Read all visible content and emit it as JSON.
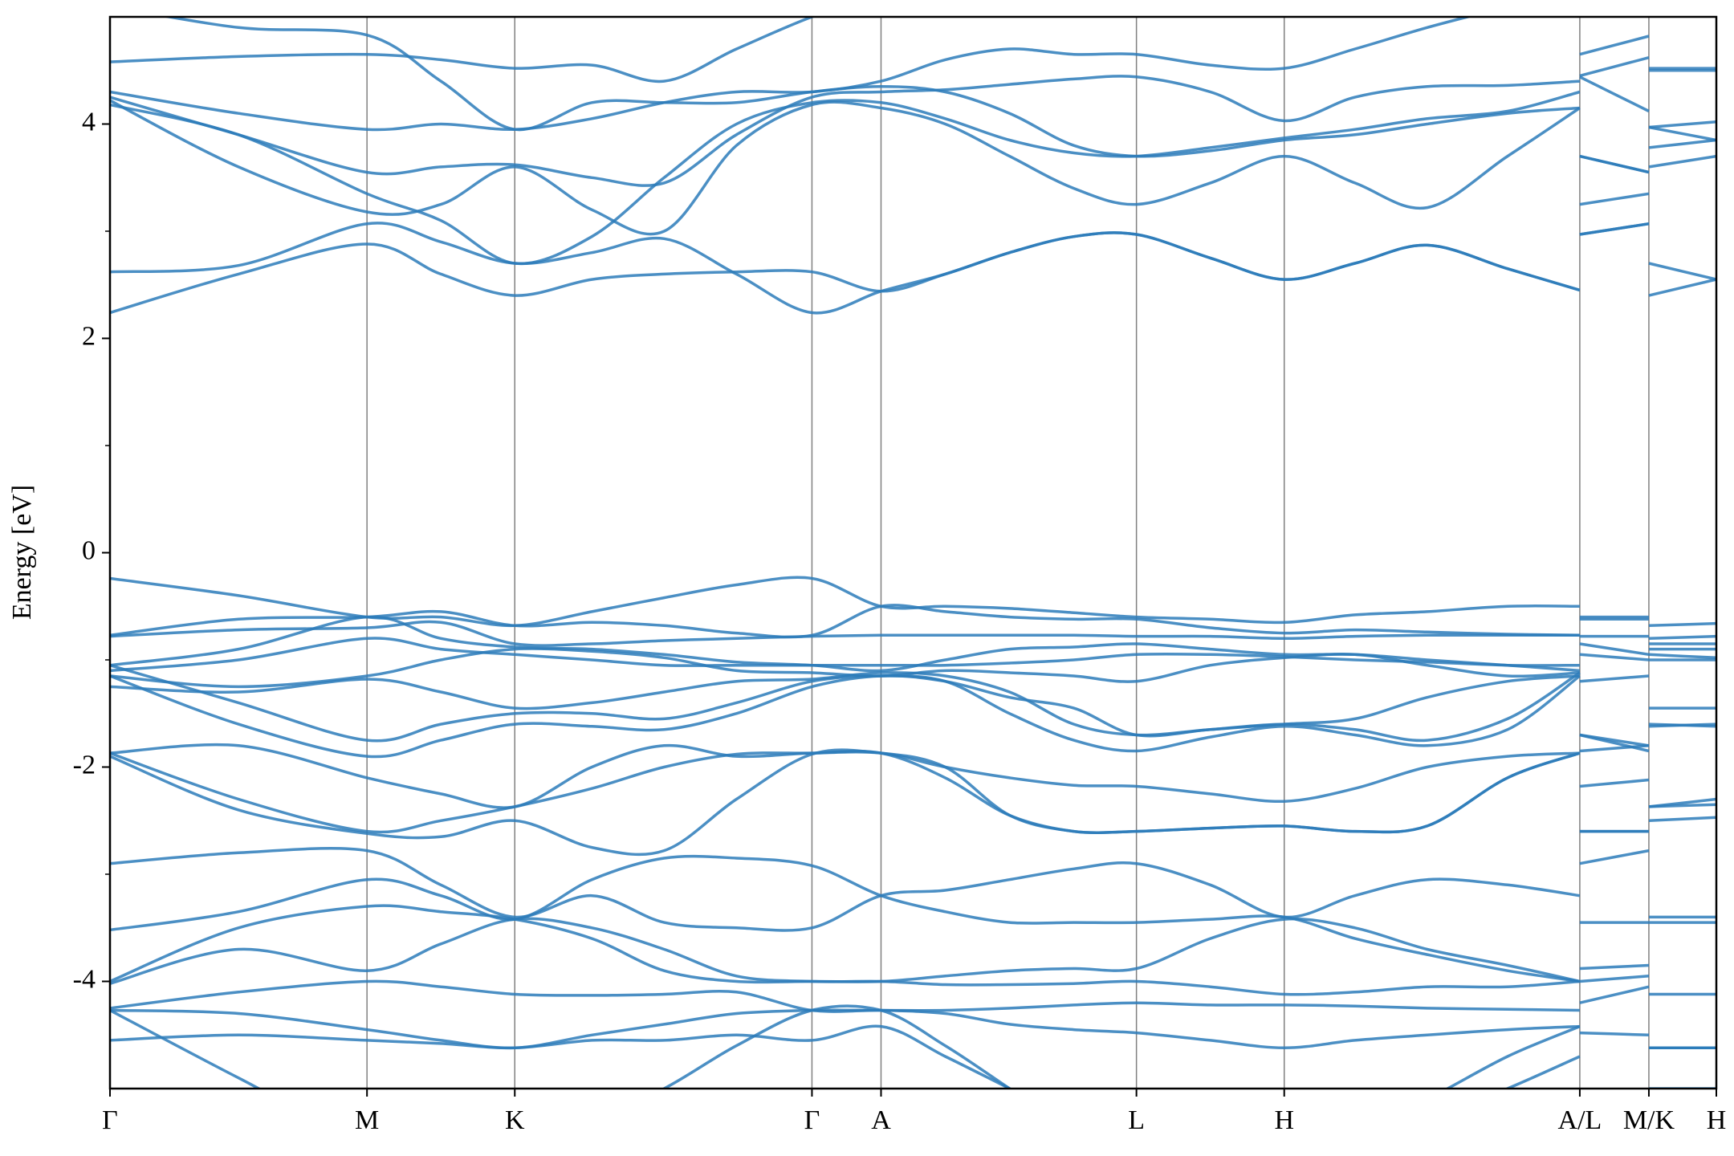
{
  "chart_data": {
    "type": "line",
    "ylabel": "Energy [eV]",
    "color": "#2b7bba",
    "xlim": [
      0,
      1
    ],
    "ylim": [
      -5,
      5
    ],
    "yticks": [
      -4,
      -2,
      0,
      2,
      4
    ],
    "yminorticks": [
      -3,
      -1,
      1,
      3
    ],
    "xgrid": true,
    "xticks": [
      {
        "value": 0,
        "label": "Γ"
      },
      {
        "value": 0.16,
        "label": "M"
      },
      {
        "value": 0.252,
        "label": "K"
      },
      {
        "value": 0.437,
        "label": "Γ"
      },
      {
        "value": 0.48,
        "label": "A"
      },
      {
        "value": 0.639,
        "label": "L"
      },
      {
        "value": 0.731,
        "label": "H"
      },
      {
        "value": 0.915,
        "label": "A/L"
      },
      {
        "value": 0.958,
        "label": "M/K"
      },
      {
        "value": 1,
        "label": "H"
      }
    ],
    "x": [
      0,
      0.08,
      0.16,
      0.206,
      0.252,
      0.3,
      0.345,
      0.39,
      0.437,
      0.48,
      0.52,
      0.56,
      0.6,
      0.639,
      0.685,
      0.731,
      0.775,
      0.82,
      0.87,
      0.915,
      0.915,
      0.915,
      0.958,
      0.958,
      0.958,
      1
    ],
    "series": [
      {
        "values": [
          2.24,
          2.6,
          2.88,
          2.6,
          2.4,
          2.55,
          2.6,
          2.62,
          2.62,
          2.44,
          2.6,
          2.8,
          2.95,
          2.97,
          2.75,
          2.55,
          2.7,
          2.87,
          2.65,
          2.45,
          null,
          2.97,
          3.07,
          null,
          2.4,
          2.55
        ]
      },
      {
        "values": [
          2.62,
          2.68,
          3.07,
          2.9,
          2.7,
          2.8,
          2.93,
          2.6,
          2.24,
          2.44,
          2.6,
          2.8,
          2.95,
          2.97,
          2.75,
          2.55,
          2.7,
          2.87,
          2.65,
          2.45,
          null,
          2.97,
          3.07,
          null,
          2.7,
          2.55
        ]
      },
      {
        "values": [
          4.22,
          3.6,
          3.18,
          3.25,
          3.6,
          3.2,
          3.0,
          3.8,
          4.18,
          4.15,
          4.0,
          3.7,
          3.4,
          3.25,
          3.45,
          3.7,
          3.45,
          3.22,
          3.7,
          4.15,
          null,
          3.25,
          3.35,
          null,
          3.6,
          3.7
        ]
      },
      {
        "values": [
          4.18,
          3.9,
          3.35,
          3.1,
          2.7,
          2.95,
          3.5,
          4.0,
          4.2,
          4.2,
          4.05,
          3.85,
          3.73,
          3.7,
          3.78,
          3.87,
          3.95,
          4.05,
          4.12,
          4.3,
          null,
          3.7,
          3.55,
          null,
          3.78,
          3.85
        ]
      },
      {
        "values": [
          4.25,
          3.9,
          3.55,
          3.6,
          3.62,
          3.5,
          3.45,
          3.9,
          4.25,
          4.3,
          4.32,
          4.37,
          4.42,
          4.44,
          4.3,
          4.03,
          4.25,
          4.35,
          4.36,
          4.4,
          null,
          4.44,
          4.12,
          null,
          3.97,
          4.02
        ]
      },
      {
        "values": [
          4.3,
          4.1,
          3.95,
          4.0,
          3.95,
          4.05,
          4.2,
          4.3,
          4.3,
          4.4,
          4.6,
          4.7,
          4.65,
          4.65,
          4.55,
          4.52,
          4.7,
          4.9,
          5.1,
          5.3,
          null,
          4.65,
          4.82,
          null,
          4.5,
          4.5
        ]
      },
      {
        "values": [
          4.58,
          4.63,
          4.65,
          4.6,
          4.52,
          4.55,
          4.4,
          4.7,
          5.0,
          5.2,
          5.4,
          5.5,
          5.5,
          5.5,
          5.5,
          5.5,
          5.5,
          5.5,
          5.5,
          5.5,
          null,
          4.45,
          4.62,
          null,
          4.52,
          4.52
        ]
      },
      {
        "values": [
          5.1,
          4.9,
          4.83,
          4.4,
          3.95,
          4.2,
          4.2,
          4.2,
          4.3,
          4.35,
          4.3,
          4.1,
          3.8,
          3.7,
          3.75,
          3.85,
          3.9,
          4.0,
          4.1,
          4.15,
          null,
          3.7,
          3.55,
          null,
          3.97,
          3.85
        ]
      },
      {
        "values": [
          -0.24,
          -0.4,
          -0.6,
          -0.6,
          -0.68,
          -0.55,
          -0.42,
          -0.3,
          -0.24,
          -0.5,
          -0.5,
          -0.52,
          -0.56,
          -0.6,
          -0.62,
          -0.65,
          -0.58,
          -0.55,
          -0.5,
          -0.5,
          null,
          -0.6,
          -0.6,
          null,
          -0.68,
          -0.66
        ]
      },
      {
        "values": [
          -0.77,
          -0.62,
          -0.6,
          -0.55,
          -0.68,
          -0.65,
          -0.68,
          -0.75,
          -0.77,
          -0.5,
          -0.55,
          -0.6,
          -0.62,
          -0.62,
          -0.7,
          -0.75,
          -0.72,
          -0.74,
          -0.76,
          -0.77,
          null,
          -0.62,
          -0.62,
          null,
          -0.8,
          -0.78
        ]
      },
      {
        "values": [
          -0.78,
          -0.72,
          -0.7,
          -0.65,
          -0.85,
          -0.85,
          -0.82,
          -0.8,
          -0.78,
          -0.77,
          -0.77,
          -0.77,
          -0.77,
          -0.78,
          -0.78,
          -0.8,
          -0.78,
          -0.77,
          -0.77,
          -0.77,
          null,
          -0.78,
          -0.78,
          null,
          -0.85,
          -0.85
        ]
      },
      {
        "values": [
          -1.05,
          -0.9,
          -0.6,
          -0.8,
          -0.88,
          -0.9,
          -0.95,
          -1.02,
          -1.05,
          -1.1,
          -1.0,
          -0.9,
          -0.88,
          -0.85,
          -0.9,
          -0.95,
          -0.95,
          -1.0,
          -1.05,
          -1.1,
          null,
          -0.85,
          -0.95,
          null,
          -0.9,
          -0.9
        ]
      },
      {
        "values": [
          -1.1,
          -1.0,
          -0.8,
          -0.9,
          -0.95,
          -1.0,
          -1.05,
          -1.05,
          -1.05,
          -1.05,
          -1.05,
          -1.03,
          -1.0,
          -0.95,
          -0.95,
          -0.97,
          -1.0,
          -1.02,
          -1.05,
          -1.05,
          null,
          -0.95,
          -1.0,
          null,
          -0.95,
          -0.98
        ]
      },
      {
        "values": [
          -1.15,
          -1.25,
          -1.15,
          -1.0,
          -0.9,
          -0.92,
          -0.98,
          -1.1,
          -1.12,
          -1.15,
          -1.1,
          -1.12,
          -1.15,
          -1.2,
          -1.05,
          -0.98,
          -0.95,
          -1.05,
          -1.15,
          -1.12,
          null,
          -1.2,
          -1.15,
          null,
          -1.0,
          -1.0
        ]
      },
      {
        "values": [
          -1.25,
          -1.3,
          -1.18,
          -1.3,
          -1.45,
          -1.4,
          -1.3,
          -1.2,
          -1.18,
          -1.12,
          -1.15,
          -1.3,
          -1.6,
          -1.7,
          -1.65,
          -1.6,
          -1.55,
          -1.35,
          -1.2,
          -1.15,
          null,
          -1.7,
          -1.85,
          null,
          -1.45,
          -1.45
        ]
      },
      {
        "values": [
          -1.05,
          -1.4,
          -1.75,
          -1.6,
          -1.5,
          -1.5,
          -1.55,
          -1.4,
          -1.2,
          -1.15,
          -1.2,
          -1.5,
          -1.75,
          -1.85,
          -1.72,
          -1.62,
          -1.7,
          -1.8,
          -1.65,
          -1.15,
          null,
          -1.85,
          -1.8,
          null,
          -1.6,
          -1.62
        ]
      },
      {
        "values": [
          -1.15,
          -1.6,
          -1.9,
          -1.75,
          -1.6,
          -1.62,
          -1.65,
          -1.5,
          -1.25,
          -1.15,
          -1.2,
          -1.35,
          -1.45,
          -1.7,
          -1.65,
          -1.6,
          -1.65,
          -1.75,
          -1.55,
          -1.12,
          null,
          -1.7,
          -1.8,
          null,
          -1.62,
          -1.6
        ]
      },
      {
        "values": [
          -1.87,
          -1.8,
          -2.1,
          -2.25,
          -2.37,
          -2.0,
          -1.8,
          -1.9,
          -1.87,
          -1.87,
          -2.0,
          -2.1,
          -2.17,
          -2.18,
          -2.25,
          -2.32,
          -2.2,
          -2.0,
          -1.9,
          -1.87,
          null,
          -2.18,
          -2.12,
          null,
          -2.37,
          -2.3
        ]
      },
      {
        "values": [
          -1.87,
          -2.3,
          -2.6,
          -2.5,
          -2.37,
          -2.2,
          -2.0,
          -1.88,
          -1.87,
          -1.87,
          -2.1,
          -2.45,
          -2.6,
          -2.6,
          -2.57,
          -2.55,
          -2.6,
          -2.55,
          -2.1,
          -1.87,
          null,
          -2.6,
          -2.6,
          null,
          -2.37,
          -2.35
        ]
      },
      {
        "values": [
          -1.9,
          -2.4,
          -2.62,
          -2.65,
          -2.5,
          -2.75,
          -2.78,
          -2.3,
          -1.88,
          -1.87,
          -2.0,
          -2.45,
          -2.6,
          -2.6,
          -2.57,
          -2.55,
          -2.6,
          -2.55,
          -2.1,
          -1.87,
          null,
          -2.6,
          -2.6,
          null,
          -2.5,
          -2.47
        ]
      },
      {
        "values": [
          -2.9,
          -2.8,
          -2.78,
          -3.1,
          -3.4,
          -3.2,
          -3.45,
          -3.5,
          -3.5,
          -3.2,
          -3.15,
          -3.05,
          -2.95,
          -2.9,
          -3.1,
          -3.4,
          -3.2,
          -3.05,
          -3.1,
          -3.2,
          null,
          -2.9,
          -2.78,
          null,
          -3.4,
          -3.4
        ]
      },
      {
        "values": [
          -3.52,
          -3.35,
          -3.05,
          -3.2,
          -3.42,
          -3.05,
          -2.85,
          -2.85,
          -2.92,
          -3.2,
          -3.35,
          -3.45,
          -3.45,
          -3.45,
          -3.42,
          -3.4,
          -3.6,
          -3.75,
          -3.9,
          -4.0,
          null,
          -3.45,
          -3.45,
          null,
          -3.45,
          -3.45
        ]
      },
      {
        "values": [
          -4.0,
          -3.5,
          -3.3,
          -3.35,
          -3.42,
          -3.6,
          -3.9,
          -4.0,
          -4.0,
          -4.0,
          -3.95,
          -3.9,
          -3.88,
          -3.88,
          -3.6,
          -3.42,
          -3.5,
          -3.7,
          -3.85,
          -4.0,
          null,
          -3.88,
          -3.85,
          null,
          -4.12,
          -4.12
        ]
      },
      {
        "values": [
          -4.02,
          -3.7,
          -3.9,
          -3.65,
          -3.42,
          -3.5,
          -3.7,
          -3.95,
          -4.0,
          -4.0,
          -4.03,
          -4.03,
          -4.02,
          -4.0,
          -4.05,
          -4.12,
          -4.1,
          -4.05,
          -4.05,
          -4.0,
          null,
          -4.0,
          -3.95,
          null,
          -4.62,
          -4.62
        ]
      },
      {
        "values": [
          -4.25,
          -4.1,
          -4.0,
          -4.05,
          -4.12,
          -4.13,
          -4.12,
          -4.1,
          -4.27,
          -4.27,
          -4.3,
          -4.4,
          -4.45,
          -4.48,
          -4.55,
          -4.62,
          -4.55,
          -4.5,
          -4.45,
          -4.42,
          null,
          -4.48,
          -4.5,
          null,
          -4.62,
          -4.62
        ]
      },
      {
        "values": [
          -4.27,
          -4.3,
          -4.45,
          -4.55,
          -4.62,
          -4.5,
          -4.4,
          -4.3,
          -4.27,
          -4.27,
          -4.27,
          -4.25,
          -4.22,
          -4.2,
          -4.22,
          -4.22,
          -4.23,
          -4.25,
          -4.26,
          -4.27,
          null,
          -4.2,
          -4.05,
          null,
          -4.62,
          -4.62
        ]
      },
      {
        "values": [
          -4.55,
          -4.5,
          -4.55,
          -4.58,
          -4.62,
          -4.55,
          -4.55,
          -4.5,
          -4.55,
          -4.42,
          -4.7,
          -5.0,
          -5.3,
          -5.5,
          -5.5,
          -5.5,
          -5.4,
          -5.1,
          -4.7,
          -4.42,
          null,
          -5.5,
          -5.5,
          null,
          -5.0,
          -5.0
        ]
      },
      {
        "values": [
          -4.27,
          -4.9,
          -5.5,
          -5.5,
          -5.5,
          -5.3,
          -5.0,
          -4.6,
          -4.27,
          -4.27,
          -4.6,
          -5.0,
          -5.4,
          -5.5,
          -5.5,
          -5.5,
          -5.5,
          -5.3,
          -5.0,
          -4.7,
          null,
          -5.5,
          -5.5,
          null,
          -5.5,
          -5.5
        ]
      }
    ]
  }
}
